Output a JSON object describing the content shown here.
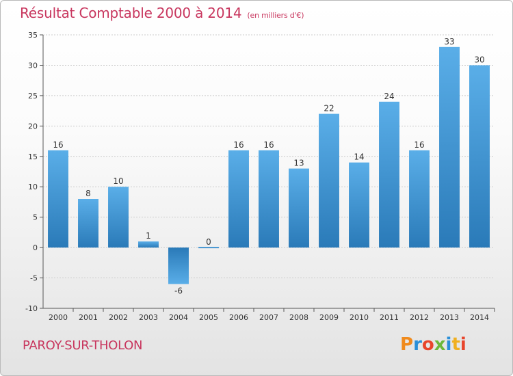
{
  "header": {
    "title": "Résultat Comptable 2000 à 2014",
    "subtitle": "(en milliers d'€)"
  },
  "footer": {
    "commune": "PAROY-SUR-THOLON",
    "brand": "Proxiti"
  },
  "colors": {
    "title": "#c8365e",
    "bar_top": "#5aaee8",
    "bar_bottom": "#2a7ab8",
    "grid": "#cccccc",
    "brand_letters": [
      "#f08a1c",
      "#2a8fd8",
      "#e8452c",
      "#6cb83a",
      "#2a8fd8",
      "#f0b020",
      "#e8452c"
    ]
  },
  "chart_data": {
    "type": "bar",
    "title": "Résultat Comptable 2000 à 2014",
    "subtitle": "(en milliers d'€)",
    "xlabel": "",
    "ylabel": "",
    "ylim": [
      -10,
      35
    ],
    "yticks": [
      -10,
      -5,
      0,
      5,
      10,
      15,
      20,
      25,
      30,
      35
    ],
    "grid": true,
    "categories": [
      "2000",
      "2001",
      "2002",
      "2003",
      "2004",
      "2005",
      "2006",
      "2007",
      "2008",
      "2009",
      "2010",
      "2011",
      "2012",
      "2013",
      "2014"
    ],
    "values": [
      16,
      8,
      10,
      1,
      -6,
      0,
      16,
      16,
      13,
      22,
      14,
      24,
      16,
      33,
      30
    ],
    "value_labels": [
      "16",
      "8",
      "10",
      "1",
      "-6",
      "0",
      "16",
      "16",
      "13",
      "22",
      "14",
      "24",
      "16",
      "33",
      "30"
    ]
  }
}
